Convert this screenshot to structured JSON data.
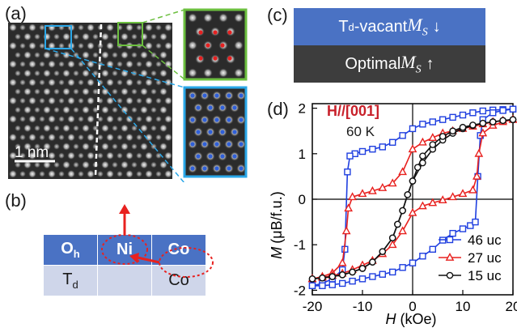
{
  "panels": {
    "a": "(a)",
    "b": "(b)",
    "c": "(c)",
    "d": "(d)"
  },
  "panel_a": {
    "scalebar": "1 nm"
  },
  "panel_b": {
    "headers": [
      "O",
      "Ni",
      "Co"
    ],
    "header_sub": "h",
    "row2_label": "T",
    "row2_sub": "d",
    "row2_co": "Co"
  },
  "panel_c": {
    "top_prefix": "T",
    "top_sub": "d",
    "top_text": "-vacant ",
    "bottom_text": "Optimal ",
    "ms_main": "M",
    "ms_sub": "S",
    "down_arrow": "↓",
    "up_arrow": "↑",
    "top_color": "#4a72c4",
    "bottom_color": "#3d3d3d"
  },
  "chart_data": {
    "type": "line",
    "annotation_title": "H//[001]",
    "annotation_temp": "60 K",
    "xlabel_main": "H",
    "xlabel_unit": " (kOe)",
    "ylabel_main": "M",
    "ylabel_unit": "(μB/f.u.)",
    "xlim": [
      -20,
      20
    ],
    "ylim": [
      -2.1,
      2.1
    ],
    "xticks": [
      -20,
      -10,
      0,
      10,
      20
    ],
    "xtick_labels": [
      "-20",
      "-10",
      "0",
      "10",
      "20"
    ],
    "yticks": [
      -2,
      -1,
      0,
      1,
      2
    ],
    "ytick_labels": [
      "-2",
      "-1",
      "0",
      "1",
      "2"
    ],
    "legend_position": "bottom-right",
    "series": [
      {
        "name": "46 uc",
        "color": "#1f3fe0",
        "marker": "square",
        "branch_down": [
          [
            20,
            1.98
          ],
          [
            18,
            1.97
          ],
          [
            16,
            1.96
          ],
          [
            14,
            1.94
          ],
          [
            12,
            1.9
          ],
          [
            10,
            1.85
          ],
          [
            8,
            1.8
          ],
          [
            6,
            1.75
          ],
          [
            4,
            1.7
          ],
          [
            2,
            1.65
          ],
          [
            0,
            1.55
          ],
          [
            -2,
            1.4
          ],
          [
            -4,
            1.25
          ],
          [
            -6,
            1.15
          ],
          [
            -8,
            1.1
          ],
          [
            -10,
            1.05
          ],
          [
            -11.5,
            1.0
          ],
          [
            -12.5,
            0.95
          ],
          [
            -13,
            0.6
          ],
          [
            -13.5,
            -1.1
          ],
          [
            -14,
            -1.55
          ],
          [
            -16,
            -1.75
          ],
          [
            -18,
            -1.85
          ],
          [
            -20,
            -1.9
          ]
        ],
        "branch_up": [
          [
            -20,
            -1.9
          ],
          [
            -18,
            -1.9
          ],
          [
            -16,
            -1.88
          ],
          [
            -14,
            -1.85
          ],
          [
            -12,
            -1.8
          ],
          [
            -10,
            -1.75
          ],
          [
            -8,
            -1.7
          ],
          [
            -6,
            -1.65
          ],
          [
            -4,
            -1.6
          ],
          [
            -2,
            -1.5
          ],
          [
            0,
            -1.4
          ],
          [
            2,
            -1.25
          ],
          [
            4,
            -1.1
          ],
          [
            6,
            -0.9
          ],
          [
            8,
            -0.75
          ],
          [
            10,
            -0.65
          ],
          [
            11.5,
            -0.58
          ],
          [
            12.5,
            -0.5
          ],
          [
            13,
            0.5
          ],
          [
            13.5,
            1.4
          ],
          [
            14,
            1.75
          ],
          [
            16,
            1.9
          ],
          [
            18,
            1.95
          ],
          [
            20,
            1.98
          ]
        ]
      },
      {
        "name": "27 uc",
        "color": "#e8211f",
        "marker": "triangle",
        "branch_down": [
          [
            20,
            1.75
          ],
          [
            18,
            1.73
          ],
          [
            16,
            1.7
          ],
          [
            14,
            1.65
          ],
          [
            12,
            1.6
          ],
          [
            10,
            1.55
          ],
          [
            8,
            1.5
          ],
          [
            6,
            1.45
          ],
          [
            4,
            1.35
          ],
          [
            2,
            1.25
          ],
          [
            0,
            1.1
          ],
          [
            -2,
            0.6
          ],
          [
            -4,
            0.35
          ],
          [
            -6,
            0.25
          ],
          [
            -8,
            0.18
          ],
          [
            -10,
            0.12
          ],
          [
            -12,
            0.05
          ],
          [
            -12.8,
            -0.2
          ],
          [
            -13.2,
            -0.7
          ],
          [
            -14,
            -1.4
          ],
          [
            -16,
            -1.62
          ],
          [
            -18,
            -1.7
          ],
          [
            -20,
            -1.75
          ]
        ],
        "branch_up": [
          [
            -20,
            -1.75
          ],
          [
            -18,
            -1.72
          ],
          [
            -16,
            -1.68
          ],
          [
            -14,
            -1.63
          ],
          [
            -12,
            -1.55
          ],
          [
            -10,
            -1.45
          ],
          [
            -8,
            -1.35
          ],
          [
            -6,
            -1.2
          ],
          [
            -4,
            -1.0
          ],
          [
            -2,
            -0.7
          ],
          [
            0,
            -0.3
          ],
          [
            2,
            -0.15
          ],
          [
            4,
            -0.08
          ],
          [
            6,
            -0.02
          ],
          [
            8,
            0.05
          ],
          [
            10,
            0.12
          ],
          [
            12,
            0.2
          ],
          [
            12.8,
            0.5
          ],
          [
            13.2,
            1.0
          ],
          [
            14,
            1.45
          ],
          [
            16,
            1.62
          ],
          [
            18,
            1.7
          ],
          [
            20,
            1.75
          ]
        ]
      },
      {
        "name": "15 uc",
        "color": "#111111",
        "marker": "circle",
        "branch_down": [
          [
            20,
            1.75
          ],
          [
            18,
            1.73
          ],
          [
            16,
            1.7
          ],
          [
            14,
            1.67
          ],
          [
            12,
            1.62
          ],
          [
            10,
            1.55
          ],
          [
            8,
            1.45
          ],
          [
            6,
            1.3
          ],
          [
            4,
            1.1
          ],
          [
            2,
            0.8
          ],
          [
            0,
            0.4
          ],
          [
            -1,
            0.1
          ],
          [
            -2,
            -0.25
          ],
          [
            -3,
            -0.55
          ],
          [
            -4,
            -0.85
          ],
          [
            -6,
            -1.15
          ],
          [
            -8,
            -1.38
          ],
          [
            -10,
            -1.52
          ],
          [
            -12,
            -1.6
          ],
          [
            -14,
            -1.66
          ],
          [
            -16,
            -1.7
          ],
          [
            -18,
            -1.73
          ],
          [
            -20,
            -1.75
          ]
        ],
        "branch_up": [
          [
            -20,
            -1.75
          ],
          [
            -18,
            -1.73
          ],
          [
            -16,
            -1.7
          ],
          [
            -14,
            -1.66
          ],
          [
            -12,
            -1.6
          ],
          [
            -10,
            -1.52
          ],
          [
            -8,
            -1.38
          ],
          [
            -6,
            -1.15
          ],
          [
            -4,
            -0.85
          ],
          [
            -3,
            -0.55
          ],
          [
            -2,
            -0.25
          ],
          [
            -1,
            0.1
          ],
          [
            0,
            0.4
          ],
          [
            1,
            0.7
          ],
          [
            2,
            0.95
          ],
          [
            4,
            1.2
          ],
          [
            6,
            1.38
          ],
          [
            8,
            1.5
          ],
          [
            10,
            1.58
          ],
          [
            12,
            1.63
          ],
          [
            14,
            1.67
          ],
          [
            16,
            1.7
          ],
          [
            18,
            1.73
          ],
          [
            20,
            1.75
          ]
        ]
      }
    ]
  }
}
